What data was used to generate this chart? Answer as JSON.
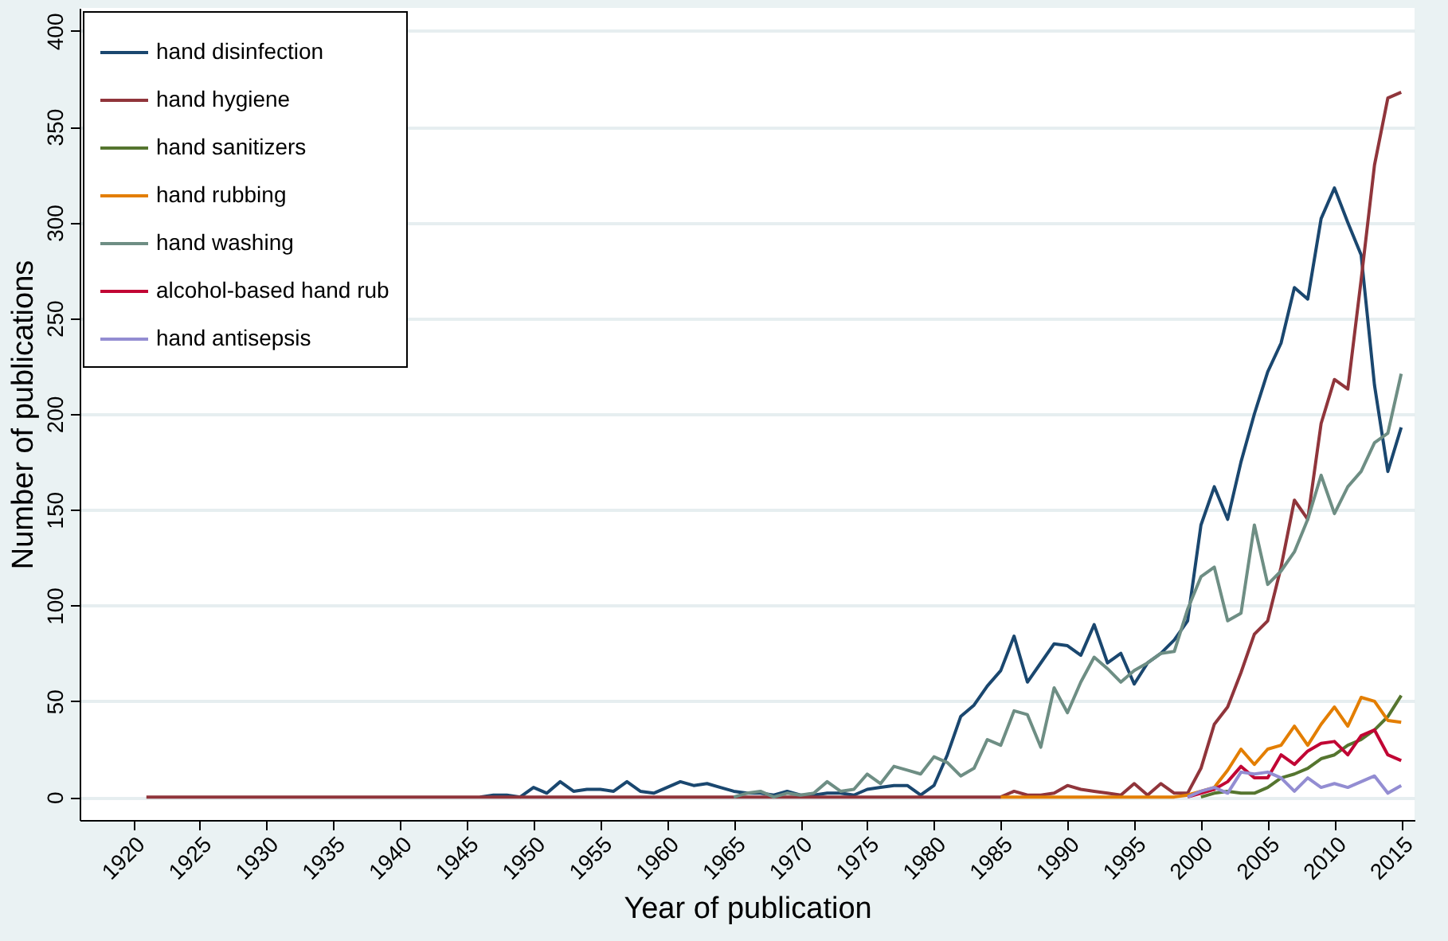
{
  "chart_data": {
    "type": "line",
    "xlabel": "Year of publication",
    "ylabel": "Number of publications",
    "x": [
      1921,
      1922,
      1923,
      1924,
      1925,
      1926,
      1927,
      1928,
      1929,
      1930,
      1931,
      1932,
      1933,
      1934,
      1935,
      1936,
      1937,
      1938,
      1939,
      1940,
      1941,
      1942,
      1943,
      1944,
      1945,
      1946,
      1947,
      1948,
      1949,
      1950,
      1951,
      1952,
      1953,
      1954,
      1955,
      1956,
      1957,
      1958,
      1959,
      1960,
      1961,
      1962,
      1963,
      1964,
      1965,
      1966,
      1967,
      1968,
      1969,
      1970,
      1971,
      1972,
      1973,
      1974,
      1975,
      1976,
      1977,
      1978,
      1979,
      1980,
      1981,
      1982,
      1983,
      1984,
      1985,
      1986,
      1987,
      1988,
      1989,
      1990,
      1991,
      1992,
      1993,
      1994,
      1995,
      1996,
      1997,
      1998,
      1999,
      2000,
      2001,
      2002,
      2003,
      2004,
      2005,
      2006,
      2007,
      2008,
      2009,
      2010,
      2011,
      2012,
      2013,
      2014,
      2015
    ],
    "series": [
      {
        "name": "hand disinfection",
        "color": "#1a476f",
        "values": [
          null,
          null,
          null,
          null,
          null,
          null,
          null,
          null,
          null,
          null,
          null,
          null,
          null,
          null,
          null,
          null,
          null,
          null,
          null,
          null,
          null,
          null,
          null,
          null,
          null,
          0,
          1,
          1,
          0,
          5,
          2,
          8,
          3,
          4,
          4,
          3,
          8,
          3,
          2,
          5,
          8,
          6,
          7,
          5,
          3,
          2,
          2,
          1,
          3,
          1,
          1,
          2,
          2,
          1,
          4,
          5,
          6,
          6,
          1,
          6,
          22,
          42,
          48,
          58,
          66,
          84,
          60,
          70,
          80,
          79,
          74,
          90,
          70,
          75,
          59,
          70,
          75,
          82,
          92,
          142,
          162,
          145,
          175,
          200,
          222,
          237,
          266,
          260,
          302,
          318,
          300,
          283,
          215,
          170,
          193
        ]
      },
      {
        "name": "hand hygiene",
        "color": "#90353b",
        "values": [
          0,
          0,
          0,
          0,
          0,
          0,
          0,
          0,
          0,
          0,
          0,
          0,
          0,
          0,
          0,
          0,
          0,
          0,
          0,
          0,
          0,
          0,
          0,
          0,
          0,
          0,
          0,
          0,
          0,
          0,
          0,
          0,
          0,
          0,
          0,
          0,
          0,
          0,
          0,
          0,
          0,
          0,
          0,
          0,
          0,
          0,
          0,
          0,
          0,
          0,
          0,
          0,
          0,
          0,
          0,
          0,
          0,
          0,
          0,
          0,
          0,
          0,
          0,
          0,
          0,
          3,
          1,
          1,
          2,
          6,
          4,
          3,
          2,
          1,
          7,
          1,
          7,
          2,
          2,
          15,
          38,
          47,
          65,
          85,
          92,
          120,
          155,
          145,
          195,
          218,
          213,
          270,
          330,
          365,
          368
        ]
      },
      {
        "name": "hand sanitizers",
        "color": "#55752f",
        "values": [
          null,
          null,
          null,
          null,
          null,
          null,
          null,
          null,
          null,
          null,
          null,
          null,
          null,
          null,
          null,
          null,
          null,
          null,
          null,
          null,
          null,
          null,
          null,
          null,
          null,
          null,
          null,
          null,
          null,
          null,
          null,
          null,
          null,
          null,
          null,
          null,
          null,
          null,
          null,
          null,
          null,
          null,
          null,
          null,
          null,
          null,
          null,
          null,
          null,
          null,
          null,
          null,
          null,
          null,
          null,
          null,
          null,
          null,
          null,
          null,
          null,
          null,
          null,
          null,
          null,
          null,
          null,
          null,
          null,
          null,
          null,
          null,
          null,
          null,
          null,
          null,
          null,
          null,
          null,
          0,
          2,
          3,
          2,
          2,
          5,
          10,
          12,
          15,
          20,
          22,
          27,
          30,
          35,
          42,
          53
        ]
      },
      {
        "name": "hand rubbing",
        "color": "#e37e00",
        "values": [
          null,
          null,
          null,
          null,
          null,
          null,
          null,
          null,
          null,
          null,
          null,
          null,
          null,
          null,
          null,
          null,
          null,
          null,
          null,
          null,
          null,
          null,
          null,
          null,
          null,
          null,
          null,
          null,
          null,
          null,
          null,
          null,
          null,
          null,
          null,
          null,
          null,
          null,
          null,
          null,
          null,
          null,
          null,
          null,
          null,
          null,
          null,
          null,
          null,
          null,
          null,
          null,
          null,
          null,
          null,
          null,
          null,
          null,
          null,
          null,
          null,
          null,
          null,
          null,
          0,
          0,
          0,
          0,
          0,
          0,
          0,
          0,
          0,
          0,
          0,
          0,
          0,
          0,
          1,
          3,
          5,
          14,
          25,
          17,
          25,
          27,
          37,
          27,
          38,
          47,
          37,
          52,
          50,
          40,
          39
        ]
      },
      {
        "name": "hand washing",
        "color": "#6e8e84",
        "values": [
          null,
          null,
          null,
          null,
          null,
          null,
          null,
          null,
          null,
          null,
          null,
          null,
          null,
          null,
          null,
          null,
          null,
          null,
          null,
          null,
          null,
          null,
          null,
          null,
          null,
          null,
          null,
          null,
          null,
          null,
          null,
          null,
          null,
          null,
          null,
          null,
          null,
          null,
          null,
          null,
          null,
          null,
          null,
          null,
          0,
          2,
          3,
          0,
          2,
          1,
          2,
          8,
          3,
          4,
          12,
          7,
          16,
          14,
          12,
          21,
          18,
          11,
          15,
          30,
          27,
          45,
          43,
          26,
          57,
          44,
          60,
          73,
          67,
          60,
          66,
          70,
          75,
          76,
          98,
          115,
          120,
          92,
          96,
          142,
          111,
          118,
          128,
          145,
          168,
          148,
          162,
          170,
          185,
          190,
          221
        ]
      },
      {
        "name": "alcohol-based hand rub",
        "color": "#c10534",
        "values": [
          null,
          null,
          null,
          null,
          null,
          null,
          null,
          null,
          null,
          null,
          null,
          null,
          null,
          null,
          null,
          null,
          null,
          null,
          null,
          null,
          null,
          null,
          null,
          null,
          null,
          null,
          null,
          null,
          null,
          null,
          null,
          null,
          null,
          null,
          null,
          null,
          null,
          null,
          null,
          null,
          null,
          null,
          null,
          null,
          null,
          null,
          null,
          null,
          null,
          null,
          null,
          null,
          null,
          null,
          null,
          null,
          null,
          null,
          null,
          null,
          null,
          null,
          null,
          null,
          null,
          null,
          null,
          null,
          null,
          null,
          null,
          null,
          null,
          null,
          null,
          null,
          null,
          null,
          0,
          2,
          4,
          8,
          16,
          10,
          10,
          22,
          17,
          24,
          28,
          29,
          22,
          32,
          35,
          22,
          19
        ]
      },
      {
        "name": "hand antisepsis",
        "color": "#938dd2",
        "values": [
          null,
          null,
          null,
          null,
          null,
          null,
          null,
          null,
          null,
          null,
          null,
          null,
          null,
          null,
          null,
          null,
          null,
          null,
          null,
          null,
          null,
          null,
          null,
          null,
          null,
          null,
          null,
          null,
          null,
          null,
          null,
          null,
          null,
          null,
          null,
          null,
          null,
          null,
          null,
          null,
          null,
          null,
          null,
          null,
          null,
          null,
          null,
          null,
          null,
          null,
          null,
          null,
          null,
          null,
          null,
          null,
          null,
          null,
          null,
          null,
          null,
          null,
          null,
          null,
          null,
          null,
          null,
          null,
          null,
          null,
          null,
          null,
          null,
          null,
          null,
          null,
          null,
          null,
          0,
          3,
          5,
          2,
          13,
          12,
          13,
          10,
          3,
          10,
          5,
          7,
          5,
          8,
          11,
          2,
          6
        ]
      }
    ],
    "xlim": [
      1916,
      2016
    ],
    "xticks": [
      1920,
      1925,
      1930,
      1935,
      1940,
      1945,
      1950,
      1955,
      1960,
      1965,
      1970,
      1975,
      1980,
      1985,
      1990,
      1995,
      2000,
      2005,
      2010,
      2015
    ],
    "ylim": [
      -12,
      412
    ],
    "yticks": [
      0,
      50,
      100,
      150,
      200,
      250,
      300,
      350,
      400
    ],
    "grid": "y",
    "legend": "top left",
    "line_style": "solid",
    "marker": "none"
  }
}
